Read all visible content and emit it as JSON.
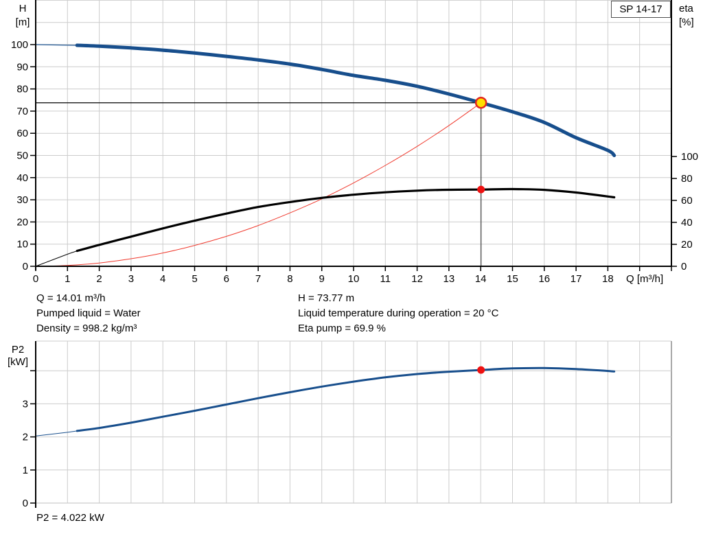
{
  "pump_model": "SP 14-17",
  "annotations": {
    "left": [
      "Q = 14.01 m³/h",
      "Pumped liquid = Water",
      "Density = 998.2 kg/m³"
    ],
    "right": [
      "H = 73.77 m",
      "Liquid temperature during operation = 20 °C",
      "Eta pump = 69.9 %"
    ]
  },
  "power_caption": "P2 = 4.022 kW",
  "colors": {
    "curve_blue": "#174e8c",
    "curve_black": "#000000",
    "curve_red": "#f03a2e",
    "dot_red": "#ee1111",
    "duty_fill": "#ffdf00",
    "duty_stroke": "#e2261f",
    "grid": "#cccccc",
    "border_gray": "#8c8c8c",
    "crosshair": "#4d4d4d",
    "axis": "#000000"
  },
  "chart_data": [
    {
      "id": "head_eta_chart",
      "type": "line",
      "title": "SP 14-17",
      "x_axis": {
        "label": "Q [m³/h]",
        "min": 0,
        "max": 20,
        "tick_step": 1,
        "labeled_max": 18
      },
      "y_left_axis": {
        "label_lines": [
          "H",
          "[m]"
        ],
        "min": 0,
        "grid_max": 120,
        "tick_step": 10,
        "labeled_max": 100
      },
      "y_right_axis": {
        "label_lines": [
          "eta",
          "[%]"
        ],
        "min": 0,
        "max": 100,
        "tick_step": 20
      },
      "grid": true,
      "series": [
        {
          "name": "system-curve",
          "axis": "left",
          "color_key": "curve_red",
          "width": 1,
          "thin_until": 0,
          "points": [
            [
              0,
              0
            ],
            [
              1,
              0.4
            ],
            [
              2,
              1.5
            ],
            [
              3,
              3.4
            ],
            [
              4,
              6.0
            ],
            [
              5,
              9.4
            ],
            [
              6,
              13.5
            ],
            [
              7,
              18.4
            ],
            [
              8,
              24.1
            ],
            [
              9,
              30.4
            ],
            [
              10,
              37.6
            ],
            [
              11,
              45.5
            ],
            [
              12,
              54.1
            ],
            [
              13,
              63.5
            ],
            [
              14.01,
              73.77
            ]
          ]
        },
        {
          "name": "efficiency-curve",
          "axis": "right",
          "color_key": "curve_black",
          "width": 3.2,
          "thin_width": 1,
          "thin_until": 1.3,
          "points": [
            [
              0,
              0
            ],
            [
              1,
              11
            ],
            [
              1.3,
              14
            ],
            [
              2,
              19.5
            ],
            [
              3,
              27
            ],
            [
              4,
              34.5
            ],
            [
              5,
              41.5
            ],
            [
              6,
              48
            ],
            [
              7,
              54
            ],
            [
              8,
              58.5
            ],
            [
              9,
              62.3
            ],
            [
              10,
              65.2
            ],
            [
              11,
              67.4
            ],
            [
              12,
              68.9
            ],
            [
              13,
              69.7
            ],
            [
              14.01,
              69.9
            ],
            [
              15,
              70.3
            ],
            [
              16,
              69.6
            ],
            [
              17,
              67.2
            ],
            [
              18.2,
              62.8
            ]
          ]
        },
        {
          "name": "head-curve",
          "axis": "left",
          "color_key": "curve_blue",
          "width": 5,
          "thin_width": 1.2,
          "thin_until": 1.3,
          "points": [
            [
              0,
              100
            ],
            [
              1.3,
              99.7
            ],
            [
              2,
              99.3
            ],
            [
              3,
              98.5
            ],
            [
              4,
              97.5
            ],
            [
              5,
              96.2
            ],
            [
              6,
              94.7
            ],
            [
              7,
              93.1
            ],
            [
              8,
              91.2
            ],
            [
              9,
              88.8
            ],
            [
              10,
              86.1
            ],
            [
              11,
              83.9
            ],
            [
              12,
              81.2
            ],
            [
              13,
              77.7
            ],
            [
              14.01,
              73.77
            ],
            [
              15,
              69.7
            ],
            [
              16,
              64.9
            ],
            [
              17,
              58
            ],
            [
              18,
              52.3
            ],
            [
              18.2,
              50
            ]
          ]
        }
      ],
      "duty_point": {
        "q": 14.01,
        "h": 73.77
      },
      "efficiency_point": {
        "q": 14.01,
        "eta": 69.9
      },
      "crosshair": true
    },
    {
      "id": "power_chart",
      "type": "line",
      "x_axis": {
        "min": 0,
        "max": 20,
        "tick_step": 1,
        "labels_shown": false
      },
      "y_axis": {
        "label_lines": [
          "P2",
          "[kW]"
        ],
        "min": 0,
        "max": 4.9,
        "tick_step": 1,
        "tick_max": 4,
        "labeled_max": 3
      },
      "grid": true,
      "series": [
        {
          "name": "p2-curve",
          "color_key": "curve_blue",
          "width": 3,
          "thin_width": 1,
          "thin_until": 1.3,
          "points": [
            [
              0,
              2.03
            ],
            [
              1,
              2.14
            ],
            [
              1.3,
              2.18
            ],
            [
              2,
              2.27
            ],
            [
              3,
              2.43
            ],
            [
              4,
              2.61
            ],
            [
              5,
              2.79
            ],
            [
              6,
              2.98
            ],
            [
              7,
              3.17
            ],
            [
              8,
              3.35
            ],
            [
              9,
              3.52
            ],
            [
              10,
              3.67
            ],
            [
              11,
              3.8
            ],
            [
              12,
              3.9
            ],
            [
              13,
              3.97
            ],
            [
              14.01,
              4.022
            ],
            [
              15,
              4.07
            ],
            [
              16,
              4.08
            ],
            [
              17,
              4.05
            ],
            [
              18.2,
              3.98
            ]
          ]
        }
      ],
      "power_point": {
        "q": 14.01,
        "p2": 4.022
      }
    }
  ]
}
